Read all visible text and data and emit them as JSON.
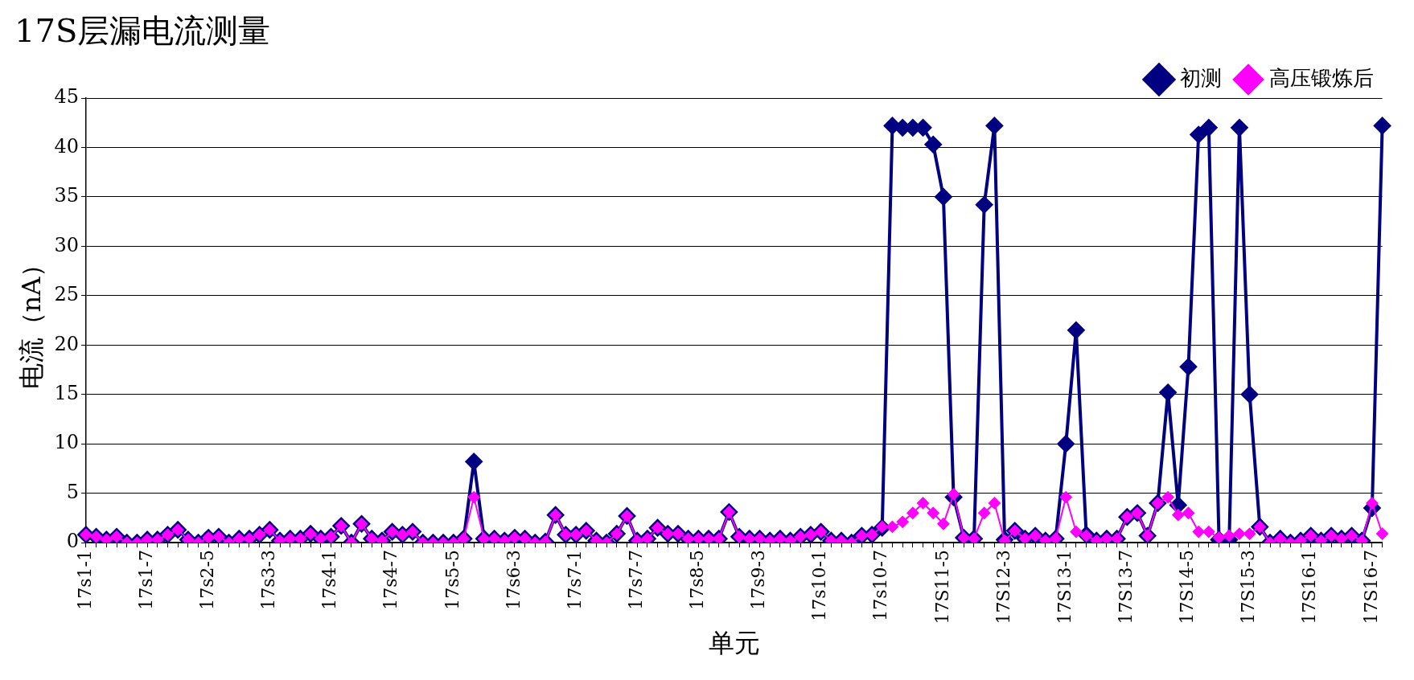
{
  "chart_data": {
    "type": "line",
    "title": "17S层漏电流测量",
    "xlabel": "单元",
    "ylabel": "电流（nA）",
    "categories": [
      "17s1-1",
      null,
      null,
      null,
      null,
      null,
      "17s1-7",
      null,
      null,
      null,
      null,
      null,
      "17s2-5",
      null,
      null,
      null,
      null,
      null,
      "17s3-3",
      null,
      null,
      null,
      null,
      null,
      "17s4-1",
      null,
      null,
      null,
      null,
      null,
      "17s4-7",
      null,
      null,
      null,
      null,
      null,
      "17s5-5",
      null,
      null,
      null,
      null,
      null,
      "17s6-3",
      null,
      null,
      null,
      null,
      null,
      "17s7-1",
      null,
      null,
      null,
      null,
      null,
      "17s7-7",
      null,
      null,
      null,
      null,
      null,
      "17s8-5",
      null,
      null,
      null,
      null,
      null,
      "17s9-3",
      null,
      null,
      null,
      null,
      null,
      "17s10-1",
      null,
      null,
      null,
      null,
      null,
      "17s10-7",
      null,
      null,
      null,
      null,
      null,
      "17S11-5",
      null,
      null,
      null,
      null,
      null,
      "17S12-3",
      null,
      null,
      null,
      null,
      null,
      "17S13-1",
      null,
      null,
      null,
      null,
      null,
      "17S13-7",
      null,
      null,
      null,
      null,
      null,
      "17S14-5",
      null,
      null,
      null,
      null,
      null,
      "17S15-3",
      null,
      null,
      null,
      null,
      null,
      "17S16-1",
      null,
      null,
      null,
      null,
      null,
      "17S16-7",
      null
    ],
    "series": [
      {
        "name": "初测",
        "color": "#000080",
        "values": [
          0.8,
          0.6,
          0.3,
          0.6,
          0,
          0,
          0.3,
          0.3,
          0.8,
          1.3,
          0.3,
          0,
          0.5,
          0.6,
          0,
          0.4,
          0.4,
          0.8,
          1.3,
          0.2,
          0.4,
          0.4,
          0.9,
          0.4,
          0.6,
          1.7,
          0,
          1.9,
          0.4,
          0.2,
          1.1,
          0.8,
          1.1,
          0,
          0,
          0,
          0,
          0.4,
          8.2,
          0.4,
          0.4,
          0.2,
          0.5,
          0.4,
          0,
          0.1,
          2.8,
          0.8,
          0.8,
          1.2,
          0.2,
          0,
          0.9,
          2.7,
          0.2,
          0.4,
          1.5,
          0.9,
          0.9,
          0.4,
          0.4,
          0.4,
          0.4,
          3.1,
          0.6,
          0.4,
          0.4,
          0.2,
          0.4,
          0.2,
          0.6,
          0.8,
          1.1,
          0.2,
          0.2,
          0,
          0.7,
          0.8,
          1.5,
          42.2,
          42,
          42,
          42,
          40.3,
          35,
          4.6,
          0.5,
          0.4,
          34.2,
          42.2,
          0.3,
          1.2,
          0.4,
          0.7,
          0.2,
          0.4,
          10,
          21.5,
          0.8,
          0.2,
          0.4,
          0.4,
          2.6,
          3.0,
          0.7,
          4.0,
          15.2,
          3.8,
          17.8,
          41.3,
          42,
          0.3,
          0.3,
          42,
          15,
          1.6,
          0,
          0.4,
          0,
          0.2,
          0.7,
          0.2,
          0.7,
          0.4,
          0.7,
          0.2,
          3.5,
          42.2
        ]
      },
      {
        "name": "高压锻炼后",
        "color": "#ff00ff",
        "values": [
          0.8,
          0.6,
          0.3,
          0.6,
          0,
          0,
          0.3,
          0.3,
          0.8,
          1.3,
          0.3,
          0,
          0.5,
          0.6,
          0,
          0.4,
          0.4,
          0.8,
          1.3,
          0.2,
          0.4,
          0.4,
          0.9,
          0.4,
          0.6,
          1.7,
          0,
          1.9,
          0.4,
          0.2,
          1.1,
          0.8,
          1.1,
          0,
          0,
          0,
          0,
          0.4,
          4.6,
          0.4,
          0.4,
          0.2,
          0.5,
          0.4,
          0,
          0.1,
          2.8,
          0.8,
          0.8,
          1.2,
          0.2,
          0,
          0.9,
          2.7,
          0.2,
          0.4,
          1.5,
          0.9,
          0.9,
          0.4,
          0.4,
          0.4,
          0.4,
          3.1,
          0.6,
          0.4,
          0.4,
          0.2,
          0.4,
          0.2,
          0.6,
          0.8,
          1.1,
          0.2,
          0.2,
          0,
          0.7,
          0.8,
          1.6,
          1.6,
          2.1,
          3.0,
          4.0,
          3.0,
          1.9,
          4.9,
          0.5,
          0.4,
          3.0,
          4.0,
          0.2,
          1.2,
          0.4,
          0.7,
          0.2,
          0.4,
          4.6,
          1.1,
          0.7,
          0.2,
          0.4,
          0.4,
          2.6,
          3.0,
          0.7,
          4.0,
          4.6,
          2.8,
          3.0,
          1.1,
          1.1,
          0.5,
          0.7,
          0.9,
          0.9,
          1.6,
          0,
          0.4,
          0,
          0.2,
          0.7,
          0.2,
          0.7,
          0.4,
          0.7,
          0.2,
          4.0,
          0.9
        ]
      }
    ],
    "ylim": [
      0,
      45
    ],
    "yticks": [
      0,
      5,
      10,
      15,
      20,
      25,
      30,
      35,
      40,
      45
    ],
    "grid": "y",
    "legend": "top right",
    "marker": "diamond",
    "line_style": "solid"
  }
}
